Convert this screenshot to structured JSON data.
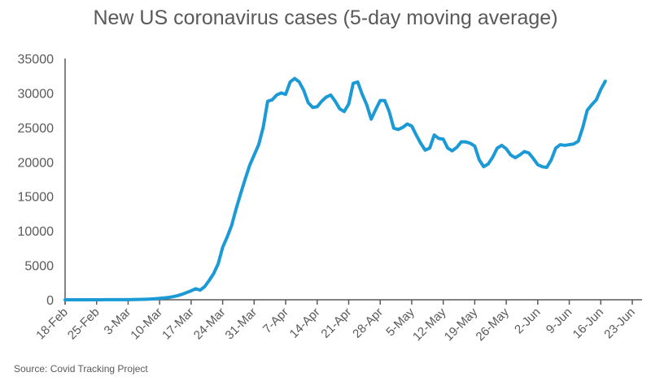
{
  "chart_data": {
    "type": "line",
    "title": "New US coronavirus cases (5-day moving average)",
    "source": "Source: Covid Tracking Project",
    "xlabel": "",
    "ylabel": "",
    "ylim": [
      0,
      35000
    ],
    "yticks": [
      0,
      5000,
      10000,
      15000,
      20000,
      25000,
      30000,
      35000
    ],
    "ytick_labels": [
      "0",
      "5000",
      "10000",
      "15000",
      "20000",
      "25000",
      "30000",
      "35000"
    ],
    "xtick_labels": [
      "18-Feb",
      "25-Feb",
      "3-Mar",
      "10-Mar",
      "17-Mar",
      "24-Mar",
      "31-Mar",
      "7-Apr",
      "14-Apr",
      "21-Apr",
      "28-Apr",
      "5-May",
      "12-May",
      "19-May",
      "26-May",
      "2-Jun",
      "9-Jun",
      "16-Jun",
      "23-Jun"
    ],
    "x_start": "18-Feb",
    "x_step_days": 1,
    "grid": false,
    "legend": "none",
    "line_color": "#1b9ad6",
    "series": [
      {
        "name": "New US cases (5-day moving average)",
        "values": [
          5,
          5,
          5,
          5,
          5,
          5,
          5,
          5,
          5,
          10,
          10,
          10,
          10,
          15,
          20,
          25,
          40,
          60,
          80,
          110,
          150,
          200,
          260,
          340,
          450,
          600,
          800,
          1050,
          1300,
          1600,
          1400,
          1900,
          2800,
          3800,
          5200,
          7600,
          9100,
          10800,
          13200,
          15400,
          17500,
          19500,
          21000,
          22500,
          25000,
          28800,
          29000,
          29700,
          30000,
          29800,
          31600,
          32100,
          31600,
          30400,
          28600,
          27900,
          28000,
          28800,
          29400,
          29700,
          28800,
          27700,
          27300,
          28400,
          31400,
          31600,
          29800,
          28300,
          26200,
          27600,
          28900,
          28900,
          27300,
          24900,
          24700,
          25000,
          25500,
          25200,
          23900,
          22700,
          21700,
          22000,
          23900,
          23400,
          23300,
          22000,
          21600,
          22100,
          22900,
          22900,
          22700,
          22300,
          20300,
          19300,
          19700,
          20700,
          22000,
          22400,
          21900,
          21000,
          20600,
          21000,
          21500,
          21300,
          20500,
          19600,
          19300,
          19200,
          20300,
          22000,
          22500,
          22400,
          22500,
          22600,
          23000,
          25000,
          27500,
          28300,
          29000,
          30500,
          31700
        ]
      }
    ]
  }
}
